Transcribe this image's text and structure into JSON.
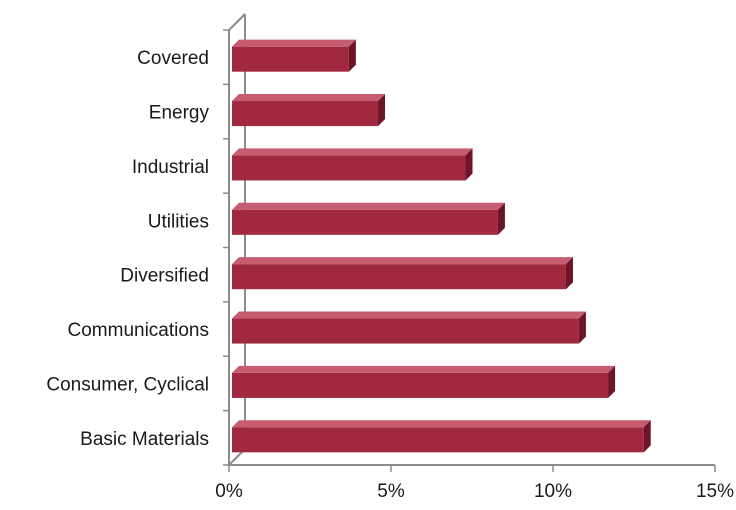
{
  "chart_data": {
    "type": "bar",
    "orientation": "horizontal",
    "style": "3d",
    "categories": [
      "Covered",
      "Energy",
      "Industrial",
      "Utilities",
      "Diversified",
      "Communications",
      "Consumer, Cyclical",
      "Basic Materials"
    ],
    "values": [
      3.7,
      4.6,
      7.3,
      8.3,
      10.4,
      10.8,
      11.7,
      12.8
    ],
    "xlim": [
      0,
      15
    ],
    "xticks": [
      0,
      5,
      10,
      15
    ],
    "xtick_labels": [
      "0%",
      "5%",
      "10%",
      "15%"
    ],
    "grid": false,
    "legend": "none",
    "colors": {
      "bar_front": "#a0283f",
      "bar_top": "#c55c6f",
      "bar_side": "#6b1527",
      "axis": "#8c8c8c"
    }
  }
}
